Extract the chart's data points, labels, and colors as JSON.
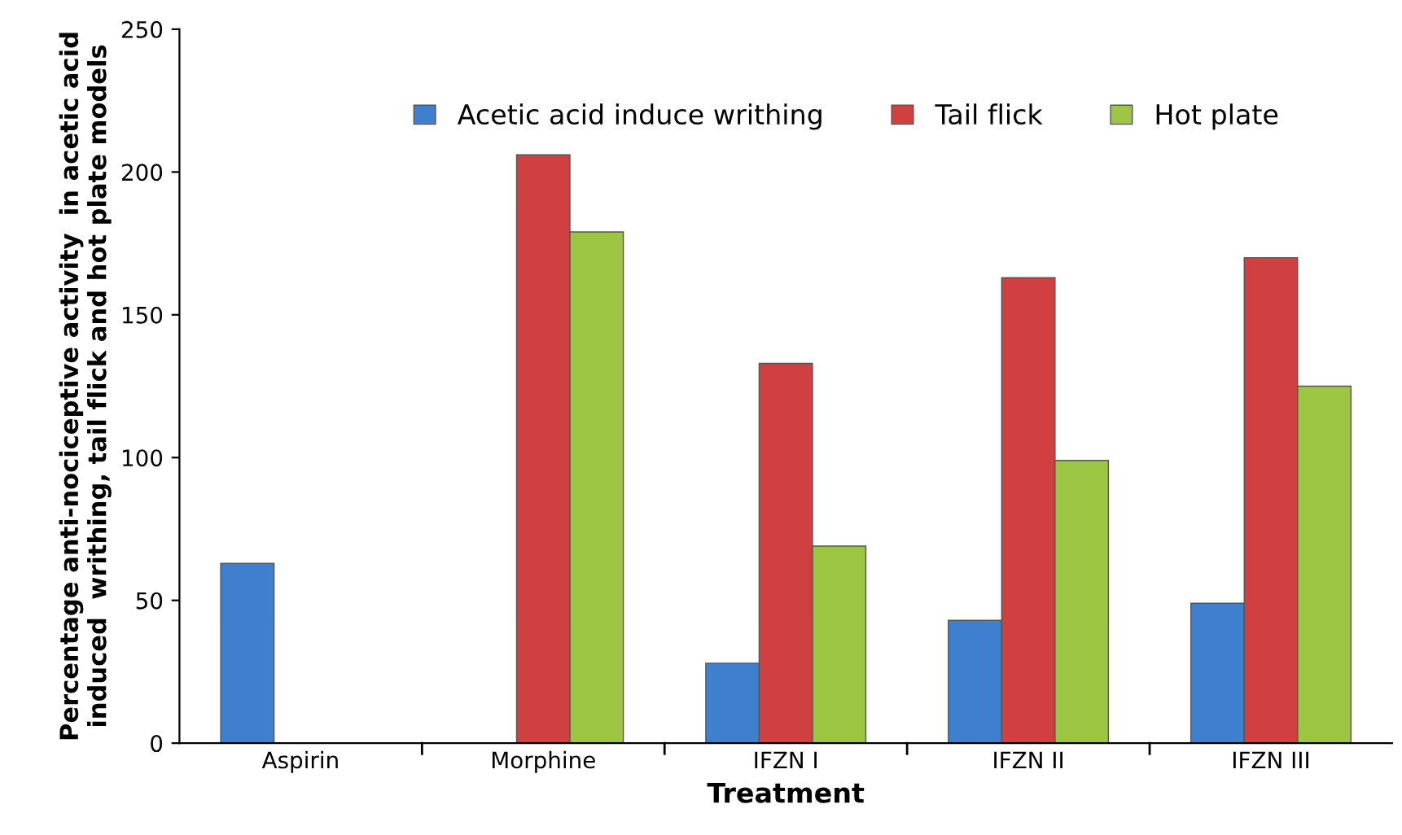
{
  "chart_data": {
    "type": "bar",
    "xlabel": "Treatment",
    "ylabel": "Percentage anti-nociceptive activity  in acetic acid induced  writhing, tail flick and hot plate models",
    "categories": [
      "Aspirin",
      "Morphine",
      "IFZN I",
      "IFZN II",
      "IFZN III"
    ],
    "series": [
      {
        "name": "Acetic acid induce writhing",
        "color": "#3f7fcf",
        "values": [
          63,
          null,
          28,
          43,
          49
        ]
      },
      {
        "name": "Tail flick",
        "color": "#d04040",
        "values": [
          null,
          206,
          133,
          163,
          170
        ]
      },
      {
        "name": "Hot plate",
        "color": "#9bc543",
        "values": [
          null,
          179,
          69,
          99,
          125
        ]
      }
    ],
    "ylim": [
      0,
      250
    ],
    "yticks": [
      0,
      50,
      100,
      150,
      200,
      250
    ],
    "grid": false,
    "legend": "top"
  }
}
